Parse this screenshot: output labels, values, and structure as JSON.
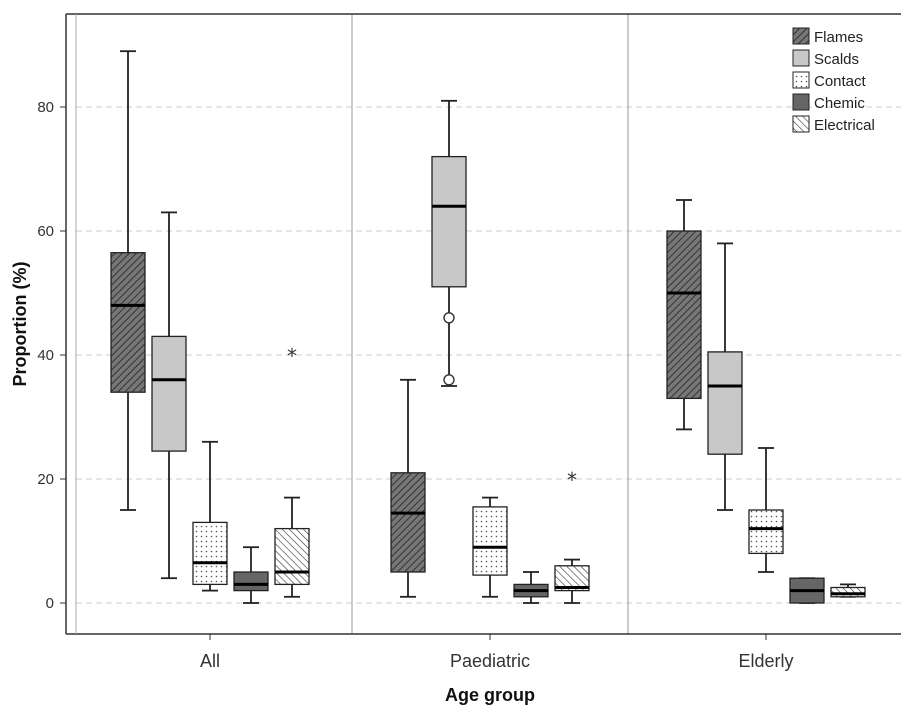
{
  "chart_data": {
    "type": "boxplot",
    "title": "",
    "xlabel": "Age group",
    "ylabel": "Proportion (%)",
    "ylim": [
      -5,
      95
    ],
    "yticks": [
      0,
      20,
      40,
      60,
      80
    ],
    "grid": "horizontal dashed",
    "legend_position": "top-right",
    "categories": [
      "All",
      "Paediatric",
      "Elderly"
    ],
    "series": [
      {
        "name": "Flames",
        "pattern": "diag-dense",
        "fill_color": "#666666",
        "values": [
          {
            "category": "All",
            "min": 15,
            "q1": 34,
            "median": 48,
            "q3": 56.5,
            "max": 89,
            "outliers": [],
            "extremes": []
          },
          {
            "category": "Paediatric",
            "min": 1,
            "q1": 5,
            "median": 14.5,
            "q3": 21,
            "max": 36,
            "outliers": [],
            "extremes": []
          },
          {
            "category": "Elderly",
            "min": 28,
            "q1": 33,
            "median": 50,
            "q3": 60,
            "max": 65,
            "outliers": [],
            "extremes": []
          }
        ]
      },
      {
        "name": "Scalds",
        "pattern": "solid",
        "fill_color": "#c8c8c8",
        "values": [
          {
            "category": "All",
            "min": 4,
            "q1": 24.5,
            "median": 36,
            "q3": 43,
            "max": 63,
            "outliers": [],
            "extremes": []
          },
          {
            "category": "Paediatric",
            "min": 35,
            "q1": 51,
            "median": 64,
            "q3": 72,
            "max": 81,
            "outliers": [
              46,
              36
            ],
            "extremes": []
          },
          {
            "category": "Elderly",
            "min": 15,
            "q1": 24,
            "median": 35,
            "q3": 40.5,
            "max": 58,
            "outliers": [],
            "extremes": []
          }
        ]
      },
      {
        "name": "Contact",
        "pattern": "dots",
        "fill_color": "#ffffff",
        "values": [
          {
            "category": "All",
            "min": 2,
            "q1": 3,
            "median": 6.5,
            "q3": 13,
            "max": 26,
            "outliers": [],
            "extremes": []
          },
          {
            "category": "Paediatric",
            "min": 1,
            "q1": 4.5,
            "median": 9,
            "q3": 15.5,
            "max": 17,
            "outliers": [],
            "extremes": []
          },
          {
            "category": "Elderly",
            "min": 5,
            "q1": 8,
            "median": 12,
            "q3": 15,
            "max": 25,
            "outliers": [],
            "extremes": []
          }
        ]
      },
      {
        "name": "Chemic",
        "pattern": "solid",
        "fill_color": "#666666",
        "values": [
          {
            "category": "All",
            "min": 0,
            "q1": 2,
            "median": 3,
            "q3": 5,
            "max": 9,
            "outliers": [],
            "extremes": []
          },
          {
            "category": "Paediatric",
            "min": 0,
            "q1": 1,
            "median": 2,
            "q3": 3,
            "max": 5,
            "outliers": [],
            "extremes": []
          },
          {
            "category": "Elderly",
            "min": 0,
            "q1": 0,
            "median": 2,
            "q3": 4,
            "max": 4,
            "outliers": [],
            "extremes": []
          }
        ]
      },
      {
        "name": "Electrical",
        "pattern": "diag-sparse",
        "fill_color": "#ffffff",
        "values": [
          {
            "category": "All",
            "min": 1,
            "q1": 3,
            "median": 5,
            "q3": 12,
            "max": 17,
            "outliers": [],
            "extremes": [
              40
            ]
          },
          {
            "category": "Paediatric",
            "min": 0,
            "q1": 2,
            "median": 2.5,
            "q3": 6,
            "max": 7,
            "outliers": [],
            "extremes": [
              20
            ]
          },
          {
            "category": "Elderly",
            "min": 1,
            "q1": 1,
            "median": 1.5,
            "q3": 2.5,
            "max": 3,
            "outliers": [],
            "extremes": []
          }
        ]
      }
    ]
  }
}
